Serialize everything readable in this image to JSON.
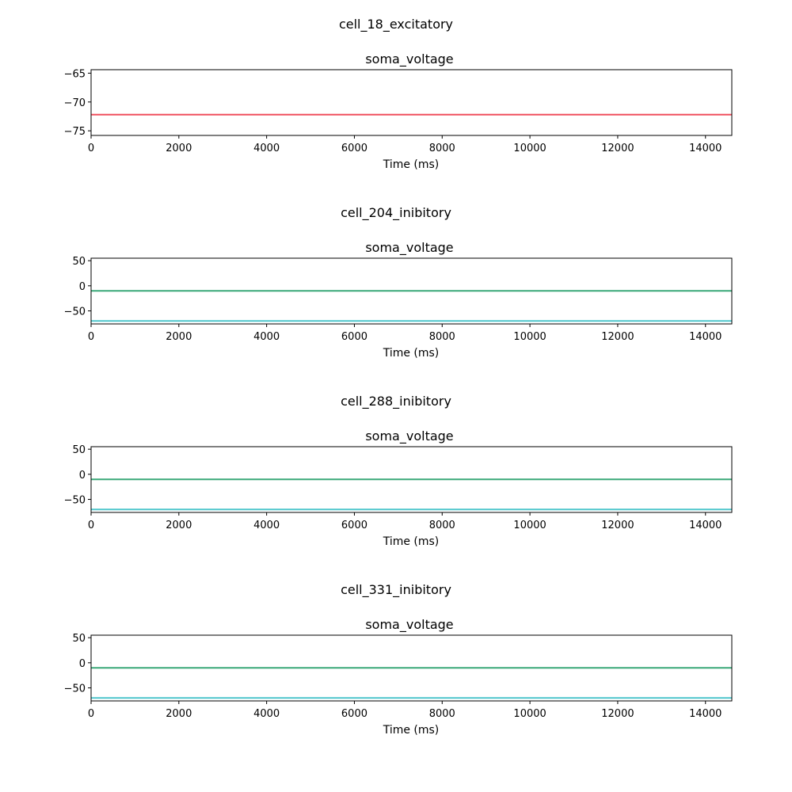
{
  "chart_data": [
    {
      "type": "line",
      "suptitle": "cell_18_excitatory",
      "title": "soma_voltage",
      "xlabel": "Time (ms)",
      "ylabel": "",
      "xlim": [
        0,
        14600
      ],
      "ylim": [
        -75.8,
        -64.4
      ],
      "xticks": [
        0,
        2000,
        4000,
        6000,
        8000,
        10000,
        12000,
        14000
      ],
      "yticks": [
        -75,
        -70,
        -65
      ],
      "grid": false,
      "series": [
        {
          "color": "#f0505f",
          "x": [
            0,
            14600
          ],
          "y": [
            -72.2,
            -72.2
          ]
        }
      ]
    },
    {
      "type": "line",
      "suptitle": "cell_204_inibitory",
      "title": "soma_voltage",
      "xlabel": "Time (ms)",
      "ylabel": "",
      "xlim": [
        0,
        14600
      ],
      "ylim": [
        -76,
        55
      ],
      "xticks": [
        0,
        2000,
        4000,
        6000,
        8000,
        10000,
        12000,
        14000
      ],
      "yticks": [
        -50,
        0,
        50
      ],
      "grid": false,
      "series": [
        {
          "color": "#3aa878",
          "x": [
            0,
            14600
          ],
          "y": [
            -10,
            -10
          ]
        },
        {
          "color": "#4dc6cc",
          "x": [
            0,
            14600
          ],
          "y": [
            -70,
            -70
          ]
        }
      ]
    },
    {
      "type": "line",
      "suptitle": "cell_288_inibitory",
      "title": "soma_voltage",
      "xlabel": "Time (ms)",
      "ylabel": "",
      "xlim": [
        0,
        14600
      ],
      "ylim": [
        -76,
        55
      ],
      "xticks": [
        0,
        2000,
        4000,
        6000,
        8000,
        10000,
        12000,
        14000
      ],
      "yticks": [
        -50,
        0,
        50
      ],
      "grid": false,
      "series": [
        {
          "color": "#3aa878",
          "x": [
            0,
            14600
          ],
          "y": [
            -10,
            -10
          ]
        },
        {
          "color": "#4dc6cc",
          "x": [
            0,
            14600
          ],
          "y": [
            -70,
            -70
          ]
        }
      ]
    },
    {
      "type": "line",
      "suptitle": "cell_331_inibitory",
      "title": "soma_voltage",
      "xlabel": "Time (ms)",
      "ylabel": "",
      "xlim": [
        0,
        14600
      ],
      "ylim": [
        -76,
        55
      ],
      "xticks": [
        0,
        2000,
        4000,
        6000,
        8000,
        10000,
        12000,
        14000
      ],
      "yticks": [
        -50,
        0,
        50
      ],
      "grid": false,
      "series": [
        {
          "color": "#3aa878",
          "x": [
            0,
            14600
          ],
          "y": [
            -10,
            -10
          ]
        },
        {
          "color": "#4dc6cc",
          "x": [
            0,
            14600
          ],
          "y": [
            -70,
            -70
          ]
        }
      ]
    }
  ]
}
